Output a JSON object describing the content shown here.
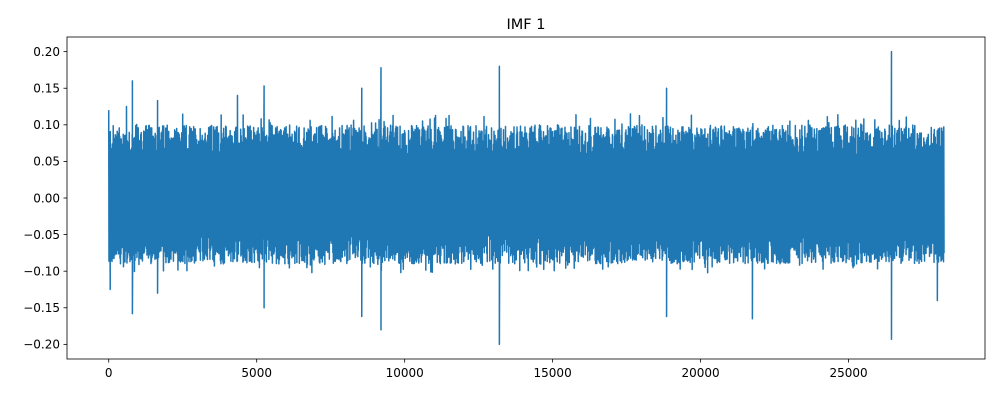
{
  "chart_data": {
    "type": "line",
    "title": "IMF 1",
    "xlabel": "",
    "ylabel": "",
    "xlim": [
      -1410,
      29610
    ],
    "ylim": [
      -0.22,
      0.22
    ],
    "x_ticks": [
      0,
      5000,
      10000,
      15000,
      20000,
      25000
    ],
    "x_tick_labels": [
      "0",
      "5000",
      "10000",
      "15000",
      "20000",
      "25000"
    ],
    "y_ticks": [
      -0.2,
      -0.15,
      -0.1,
      -0.05,
      0.0,
      0.05,
      0.1,
      0.15,
      0.2
    ],
    "y_tick_labels": [
      "−0.20",
      "−0.15",
      "−0.10",
      "−0.05",
      "0.00",
      "0.05",
      "0.10",
      "0.15",
      "0.20"
    ],
    "grid": false,
    "legend": "none",
    "series": [
      {
        "color": "#1f77b4",
        "x_range": [
          0,
          28200
        ],
        "n_points": 28200,
        "typical_envelope": [
          -0.09,
          0.1
        ],
        "peaks": [
          {
            "x": 0,
            "y": 0.12
          },
          {
            "x": 50,
            "y": -0.125
          },
          {
            "x": 600,
            "y": 0.125
          },
          {
            "x": 800,
            "y": 0.16
          },
          {
            "x": 800,
            "y": -0.158
          },
          {
            "x": 1650,
            "y": 0.133
          },
          {
            "x": 1650,
            "y": -0.13
          },
          {
            "x": 4350,
            "y": 0.14
          },
          {
            "x": 5250,
            "y": 0.153
          },
          {
            "x": 5250,
            "y": -0.15
          },
          {
            "x": 8550,
            "y": 0.15
          },
          {
            "x": 8550,
            "y": -0.162
          },
          {
            "x": 9200,
            "y": 0.178
          },
          {
            "x": 9200,
            "y": -0.18
          },
          {
            "x": 13200,
            "y": 0.18
          },
          {
            "x": 13200,
            "y": -0.2
          },
          {
            "x": 18850,
            "y": 0.15
          },
          {
            "x": 18850,
            "y": -0.162
          },
          {
            "x": 21750,
            "y": -0.165
          },
          {
            "x": 26450,
            "y": 0.2
          },
          {
            "x": 26450,
            "y": -0.193
          },
          {
            "x": 28000,
            "y": -0.14
          }
        ]
      }
    ]
  }
}
